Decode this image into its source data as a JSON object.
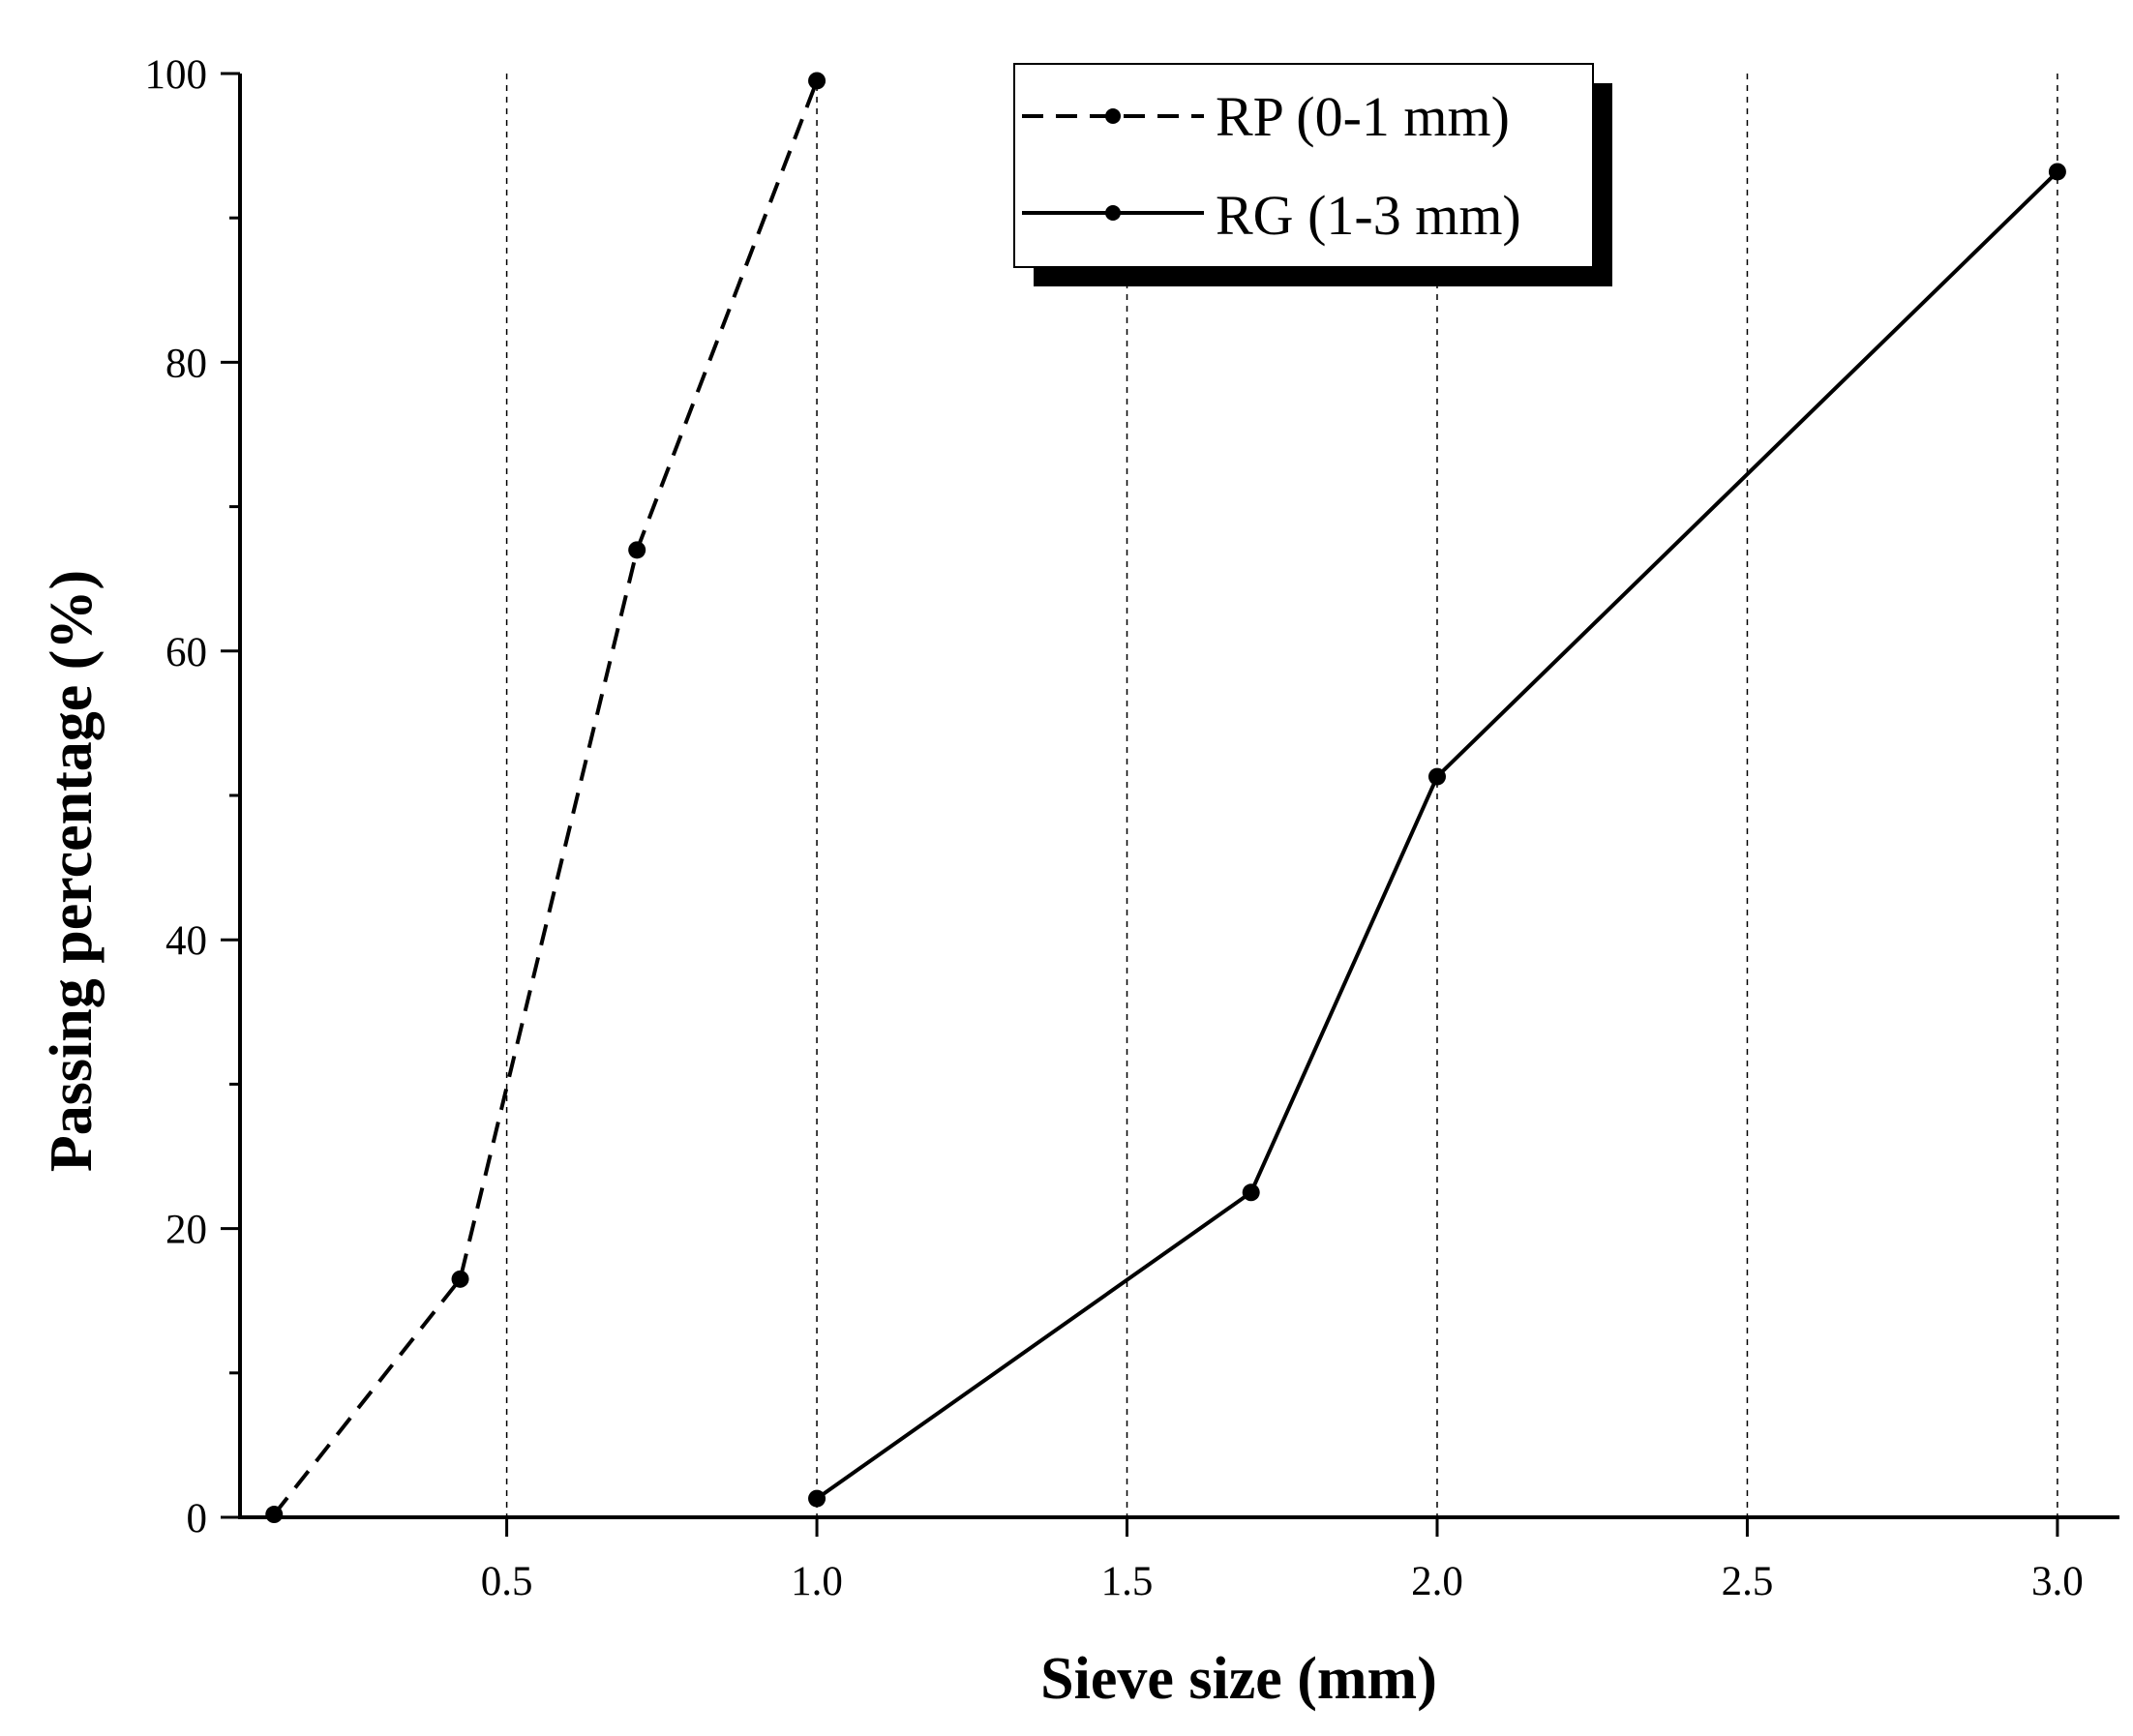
{
  "chart_data": {
    "type": "line",
    "xlabel": "Sieve size (mm)",
    "ylabel": "Passing percentage (%)",
    "xlim": [
      0.07,
      3.1
    ],
    "ylim": [
      0,
      100
    ],
    "xticks": [
      0.5,
      1.0,
      1.5,
      2.0,
      2.5,
      3.0
    ],
    "xtick_labels": [
      "0.5",
      "1.0",
      "1.5",
      "2.0",
      "2.5",
      "3.0"
    ],
    "yticks": [
      0,
      20,
      40,
      60,
      80,
      100
    ],
    "ytick_labels": [
      "0",
      "20",
      "40",
      "60",
      "80",
      "100"
    ],
    "yminor_ticks": [
      10,
      30,
      50,
      70,
      90
    ],
    "vertical_grid": [
      0.5,
      1.0,
      1.5,
      2.0,
      2.5,
      3.0
    ],
    "legend_position": "top-center",
    "series": [
      {
        "name": "RP (0-1 mm)",
        "line_style": "dashed",
        "color": "#000000",
        "x": [
          0.125,
          0.425,
          0.71,
          1.0
        ],
        "y": [
          0.2,
          16.5,
          67.0,
          99.5
        ]
      },
      {
        "name": "RG (1-3 mm)",
        "line_style": "solid",
        "color": "#000000",
        "x": [
          1.0,
          1.7,
          2.0,
          3.0
        ],
        "y": [
          1.3,
          22.5,
          51.3,
          93.2
        ]
      }
    ]
  }
}
